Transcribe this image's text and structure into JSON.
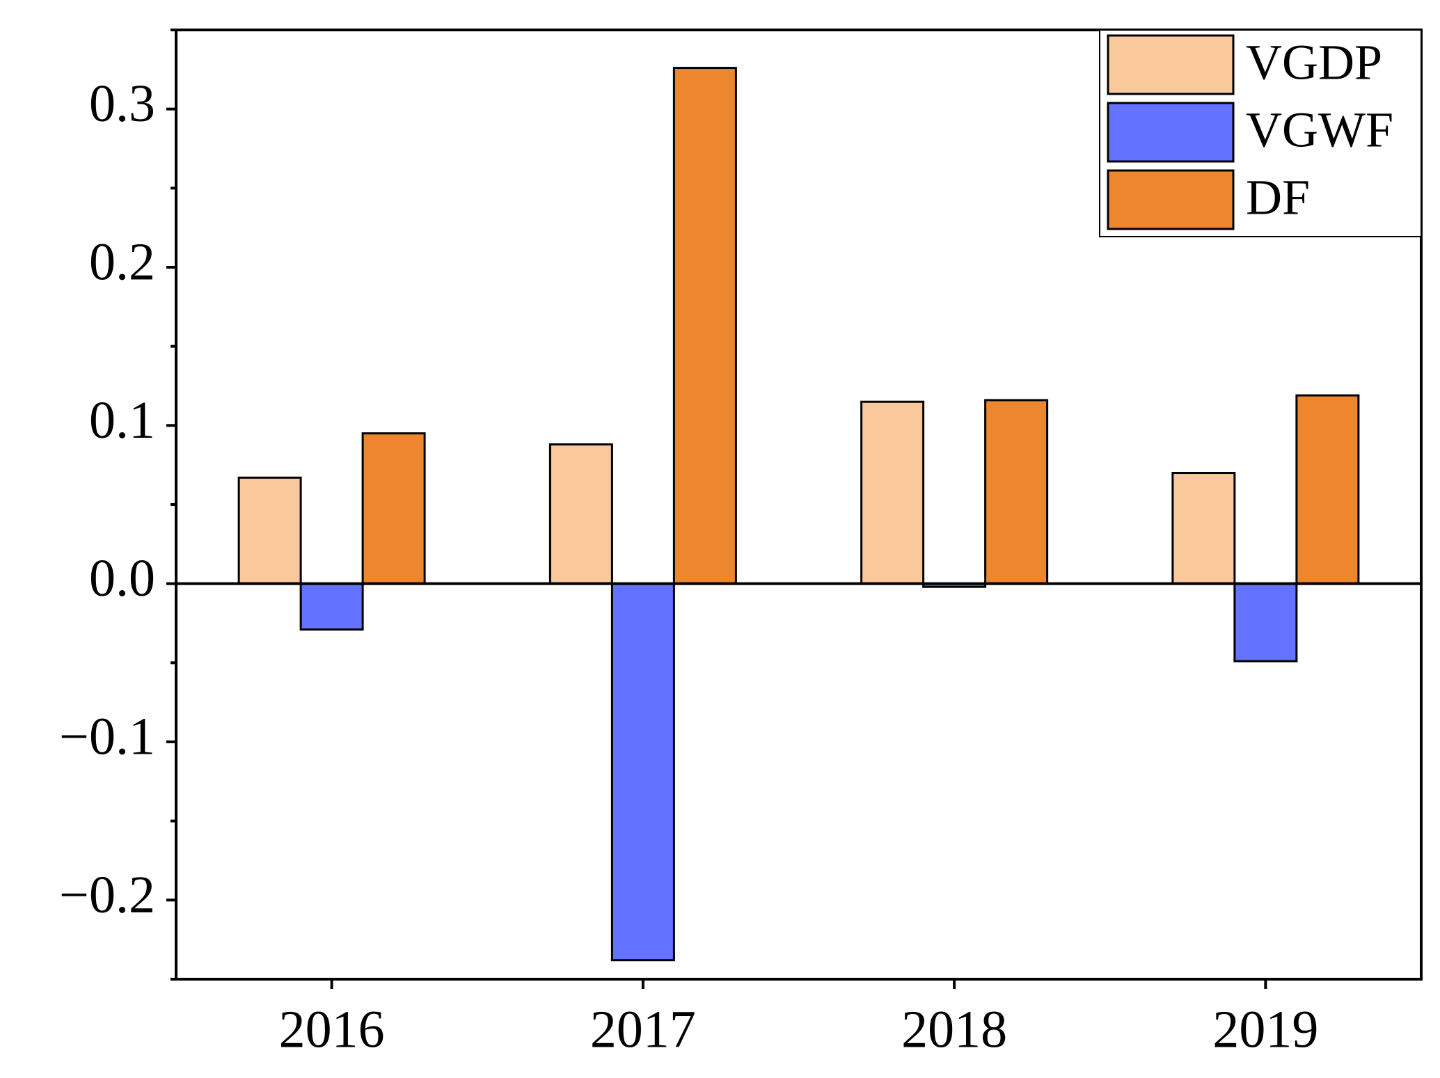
{
  "chart_data": {
    "type": "bar",
    "categories": [
      "2016",
      "2017",
      "2018",
      "2019"
    ],
    "series": [
      {
        "name": "VGDP",
        "color": "#f9c89b",
        "values": [
          0.067,
          0.088,
          0.115,
          0.07
        ]
      },
      {
        "name": "VGWF",
        "color": "#6373ff",
        "values": [
          -0.029,
          -0.238,
          -0.002,
          -0.049
        ]
      },
      {
        "name": "DF",
        "color": "#ee862d",
        "values": [
          0.095,
          0.326,
          0.116,
          0.119
        ]
      }
    ],
    "ylim": [
      -0.25,
      0.35
    ],
    "yticks": [
      {
        "value": -0.2,
        "label": "−0.2"
      },
      {
        "value": -0.1,
        "label": "−0.1"
      },
      {
        "value": 0,
        "label": "0.0"
      },
      0.1,
      0.2,
      0.3
    ],
    "yminorticks": [
      -0.25,
      -0.15,
      -0.05,
      0.05,
      0.15,
      0.25,
      0.35
    ],
    "grid": false,
    "legend": "upper-right"
  }
}
